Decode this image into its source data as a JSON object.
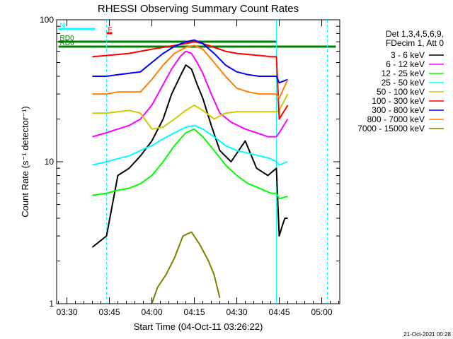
{
  "chart_data": {
    "type": "line",
    "title": "RHESSI Observing Summary Count Rates",
    "xlabel": "Start Time (04-Oct-11 03:26:22)",
    "ylabel": "Count Rate (s⁻¹ detector⁻¹)",
    "x_ticks": [
      "03:30",
      "03:45",
      "04:00",
      "04:15",
      "04:30",
      "04:45",
      "05:00"
    ],
    "y_ticks": [
      "1",
      "10",
      "100"
    ],
    "y_scale": "log",
    "ylim": [
      1,
      100
    ],
    "xlim": [
      "03:26:22",
      "05:06:22"
    ],
    "grid": false,
    "legend_position": "right",
    "legend_header": [
      "Det 1,3,4,5,6,9,",
      "FDecim 1, Att 0"
    ],
    "footer": "21-Oct-2021 00:28",
    "series": [
      {
        "name": "3 - 6 keV",
        "color": "#000000",
        "x": [
          "03:39",
          "03:44",
          "03:48",
          "03:52",
          "03:56",
          "04:00",
          "04:04",
          "04:07",
          "04:10",
          "04:12",
          "04:14",
          "04:16",
          "04:18",
          "04:21",
          "04:24",
          "04:28",
          "04:33",
          "04:37",
          "04:41",
          "04:44",
          "04:45",
          "04:46",
          "04:47",
          "04:48"
        ],
        "values": [
          2.5,
          3,
          8,
          9,
          11,
          14,
          20,
          30,
          40,
          48,
          45,
          35,
          28,
          18,
          12,
          10,
          14,
          9,
          8,
          9,
          3,
          3.5,
          4,
          4
        ]
      },
      {
        "name": "6 - 12 keV",
        "color": "#ff00ff",
        "x": [
          "03:39",
          "03:44",
          "03:48",
          "03:52",
          "03:56",
          "04:00",
          "04:04",
          "04:07",
          "04:10",
          "04:12",
          "04:14",
          "04:16",
          "04:18",
          "04:21",
          "04:24",
          "04:28",
          "04:33",
          "04:37",
          "04:41",
          "04:44",
          "04:45",
          "04:48"
        ],
        "values": [
          15,
          16,
          17,
          18,
          20,
          25,
          35,
          45,
          55,
          60,
          58,
          50,
          42,
          30,
          22,
          19,
          17,
          16,
          15,
          15,
          16,
          20
        ]
      },
      {
        "name": "12 - 25 keV",
        "color": "#00ff00",
        "x": [
          "03:39",
          "03:44",
          "03:48",
          "03:52",
          "03:56",
          "04:00",
          "04:04",
          "04:08",
          "04:12",
          "04:15",
          "04:18",
          "04:22",
          "04:26",
          "04:30",
          "04:34",
          "04:38",
          "04:42",
          "04:44",
          "04:45",
          "04:48"
        ],
        "values": [
          5.8,
          6,
          6.3,
          6.5,
          7,
          8,
          10,
          13,
          16,
          17,
          15,
          12,
          9.5,
          8,
          7,
          6.5,
          6,
          6,
          5.5,
          5.7
        ]
      },
      {
        "name": "25 - 50 keV",
        "color": "#00ffff",
        "x": [
          "03:39",
          "03:44",
          "03:48",
          "03:52",
          "03:56",
          "04:00",
          "04:04",
          "04:08",
          "04:12",
          "04:15",
          "04:18",
          "04:22",
          "04:26",
          "04:30",
          "04:34",
          "04:38",
          "04:42",
          "04:44",
          "04:45",
          "04:48"
        ],
        "values": [
          9.5,
          10,
          10.5,
          11,
          12,
          13,
          14.5,
          16,
          17.5,
          18,
          17,
          15,
          13,
          12,
          11.5,
          11,
          10.5,
          10,
          9.5,
          10
        ]
      },
      {
        "name": "50 - 100 keV",
        "color": "#cccc00",
        "x": [
          "03:39",
          "03:44",
          "03:48",
          "03:52",
          "03:56",
          "04:00",
          "04:04",
          "04:08",
          "04:12",
          "04:15",
          "04:18",
          "04:22",
          "04:26",
          "04:30",
          "04:34",
          "04:38",
          "04:42",
          "04:44",
          "04:45",
          "04:48"
        ],
        "values": [
          22,
          22,
          22.5,
          23,
          22,
          17,
          17.5,
          20,
          23,
          25,
          23,
          20,
          22,
          22.5,
          22.5,
          22.5,
          22.5,
          22.5,
          23,
          30
        ]
      },
      {
        "name": "100 - 300 keV",
        "color": "#ff0000",
        "x": [
          "03:39",
          "03:44",
          "03:48",
          "03:52",
          "03:56",
          "04:00",
          "04:04",
          "04:08",
          "04:12",
          "04:15",
          "04:18",
          "04:22",
          "04:26",
          "04:30",
          "04:34",
          "04:38",
          "04:42",
          "04:44",
          "04:45",
          "04:48"
        ],
        "values": [
          55,
          56,
          57,
          58,
          60,
          62,
          64,
          66,
          68,
          70,
          68,
          64,
          60,
          58,
          57,
          56,
          55,
          55,
          20,
          25
        ]
      },
      {
        "name": "300 - 800 keV",
        "color": "#0000ff",
        "x": [
          "03:39",
          "03:44",
          "03:48",
          "03:52",
          "03:56",
          "04:00",
          "04:04",
          "04:08",
          "04:12",
          "04:15",
          "04:18",
          "04:22",
          "04:26",
          "04:30",
          "04:34",
          "04:38",
          "04:42",
          "04:44",
          "04:45",
          "04:48"
        ],
        "values": [
          40,
          40,
          41,
          42,
          43,
          50,
          58,
          65,
          70,
          72,
          68,
          58,
          48,
          43,
          41,
          40,
          40,
          40,
          36,
          38
        ]
      },
      {
        "name": "800 - 7000 keV",
        "color": "#ff8000",
        "x": [
          "03:39",
          "03:44",
          "03:48",
          "03:52",
          "03:56",
          "04:00",
          "04:04",
          "04:08",
          "04:12",
          "04:15",
          "04:18",
          "04:22",
          "04:26",
          "04:30",
          "04:34",
          "04:38",
          "04:42",
          "04:44",
          "04:45",
          "04:48"
        ],
        "values": [
          30,
          30,
          31,
          31,
          31,
          38,
          48,
          58,
          64,
          66,
          62,
          50,
          40,
          33,
          31,
          30,
          30,
          30,
          28,
          38
        ]
      },
      {
        "name": "7000 - 15000 keV",
        "color": "#808000",
        "x": [
          "04:00",
          "04:02",
          "04:05",
          "04:08",
          "04:11",
          "04:14",
          "04:17",
          "04:20",
          "04:22",
          "04:24"
        ],
        "values": [
          1,
          1.3,
          1.6,
          2.1,
          3,
          3.2,
          2.6,
          2,
          1.6,
          1.1
        ]
      }
    ],
    "flags": [
      {
        "label": "N",
        "color": "#00ffff",
        "x_start": "03:27",
        "x_end": "03:40"
      },
      {
        "label": "F",
        "color": "#ff0000",
        "x_start": "03:44",
        "x_end": "03:46"
      },
      {
        "label": "RD0",
        "color": "#008000",
        "x_start": "03:27",
        "x_end": "04:44"
      },
      {
        "label": "RD6",
        "color": "#008000",
        "x_start": "03:27",
        "x_end": "05:05"
      }
    ]
  }
}
